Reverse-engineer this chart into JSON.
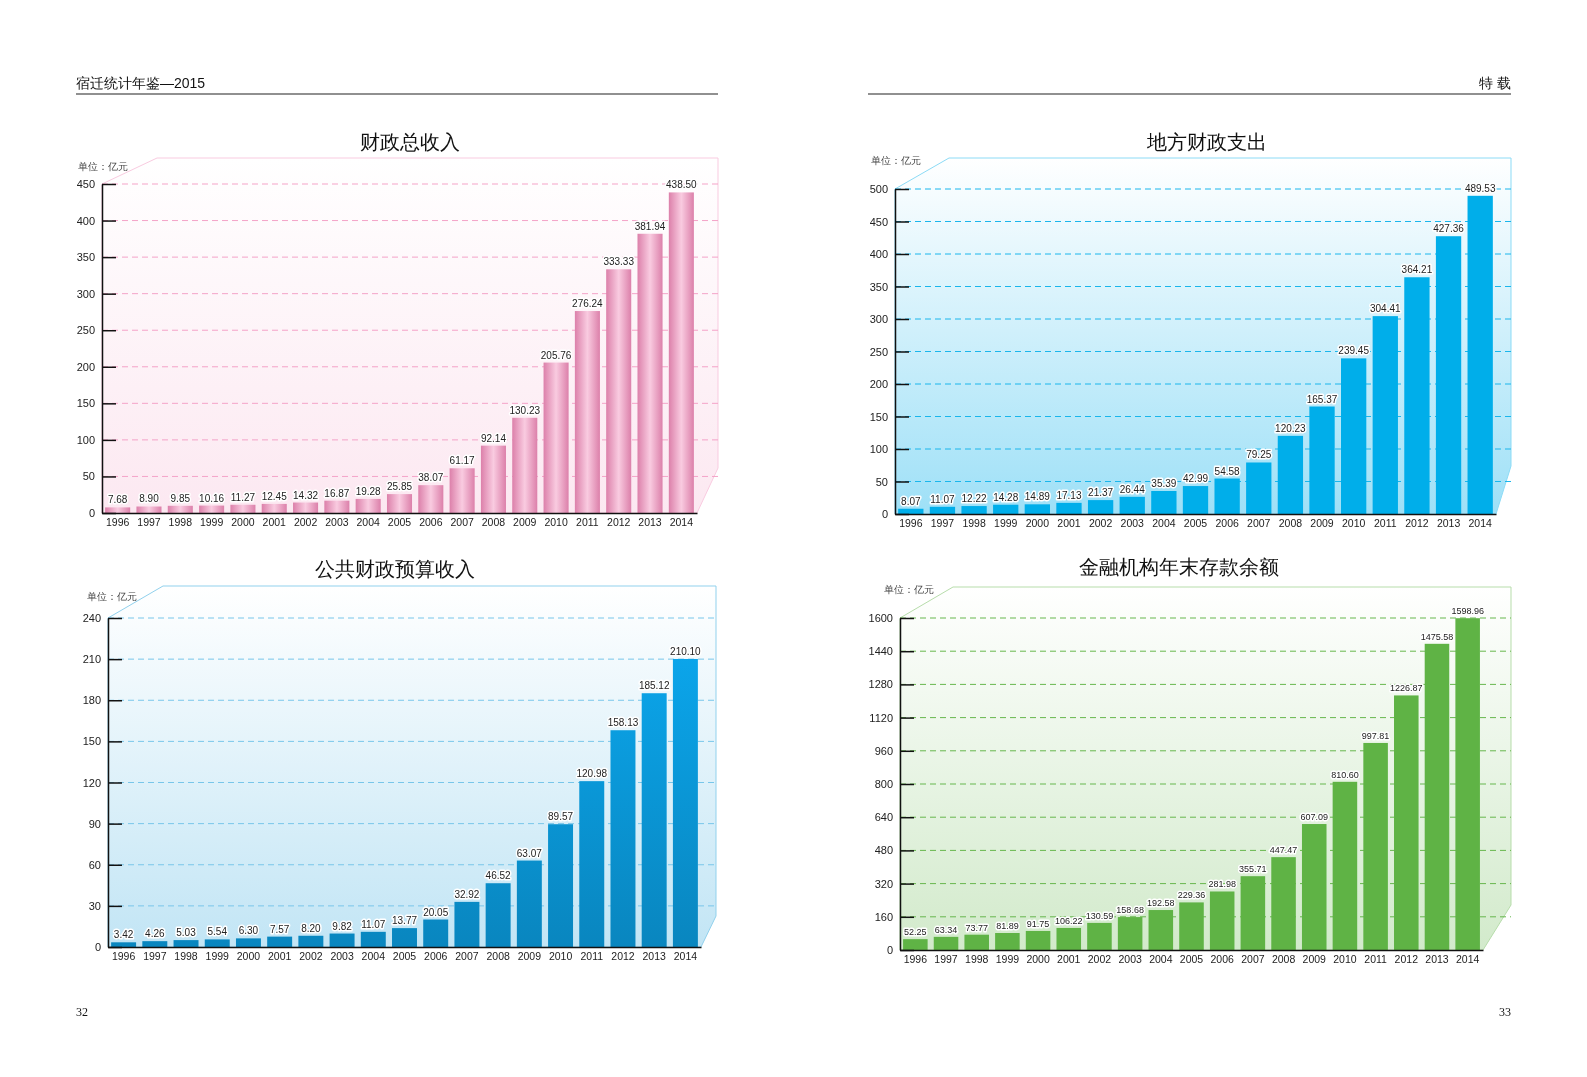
{
  "chart_data": [
    {
      "type": "bar",
      "title": "财政总收入",
      "ylabel": "单位：亿元",
      "categories": [
        "1996",
        "1997",
        "1998",
        "1999",
        "2000",
        "2001",
        "2002",
        "2003",
        "2004",
        "2005",
        "2006",
        "2007",
        "2008",
        "2009",
        "2010",
        "2011",
        "2012",
        "2013",
        "2014"
      ],
      "values": [
        7.68,
        8.9,
        9.85,
        10.16,
        11.27,
        12.45,
        14.32,
        16.87,
        19.28,
        25.85,
        38.07,
        61.17,
        92.14,
        130.23,
        205.76,
        276.24,
        333.33,
        381.94,
        438.5
      ],
      "value_labels": [
        "7.68",
        "8.90",
        "9.85",
        "10.16",
        "11.27",
        "12.45",
        "14.32",
        "16.87",
        "19.28",
        "25.85",
        "38.07",
        "61.17",
        "92.14",
        "130.23",
        "205.76",
        "276.24",
        "333.33",
        "381.94",
        "438.50"
      ],
      "color": "#f18cba",
      "ylim": [
        0,
        450
      ],
      "yticks": [
        0,
        50,
        100,
        150,
        200,
        250,
        300,
        350,
        400,
        450
      ],
      "grid": "y",
      "annotations": [
        "宿迁统计年鉴—2015"
      ]
    },
    {
      "type": "bar",
      "title": "地方财政支出",
      "ylabel": "单位：亿元",
      "categories": [
        "1996",
        "1997",
        "1998",
        "1999",
        "2000",
        "2001",
        "2002",
        "2003",
        "2004",
        "2005",
        "2006",
        "2007",
        "2008",
        "2009",
        "2010",
        "2011",
        "2012",
        "2013",
        "2014"
      ],
      "values": [
        8.07,
        11.07,
        12.22,
        14.28,
        14.89,
        17.13,
        21.37,
        26.44,
        35.39,
        42.99,
        54.58,
        79.25,
        120.23,
        165.37,
        239.45,
        304.41,
        364.21,
        427.36,
        489.53
      ],
      "value_labels": [
        "8.07",
        "11.07",
        "12.22",
        "14.28",
        "14.89",
        "17.13",
        "21.37",
        "26.44",
        "35.39",
        "42.99",
        "54.58",
        "79.25",
        "120.23",
        "165.37",
        "239.45",
        "304.41",
        "364.21",
        "427.36",
        "489.53"
      ],
      "color": "#00aeea",
      "ylim": [
        0,
        500
      ],
      "yticks": [
        0,
        50,
        100,
        150,
        200,
        250,
        300,
        350,
        400,
        450,
        500
      ],
      "grid": "y",
      "annotations": [
        "特 载"
      ]
    },
    {
      "type": "bar",
      "title": "公共财政预算收入",
      "ylabel": "单位：亿元",
      "categories": [
        "1996",
        "1997",
        "1998",
        "1999",
        "2000",
        "2001",
        "2002",
        "2003",
        "2004",
        "2005",
        "2006",
        "2007",
        "2008",
        "2009",
        "2010",
        "2011",
        "2012",
        "2013",
        "2014"
      ],
      "values": [
        3.42,
        4.26,
        5.03,
        5.54,
        6.3,
        7.57,
        8.2,
        9.82,
        11.07,
        13.77,
        20.05,
        32.92,
        46.52,
        63.07,
        89.57,
        120.98,
        158.13,
        185.12,
        210.1
      ],
      "value_labels": [
        "3.42",
        "4.26",
        "5.03",
        "5.54",
        "6.30",
        "7.57",
        "8.20",
        "9.82",
        "11.07",
        "13.77",
        "20.05",
        "32.92",
        "46.52",
        "63.07",
        "89.57",
        "120.98",
        "158.13",
        "185.12",
        "210.10"
      ],
      "color": "#0a98d8",
      "ylim": [
        0,
        240
      ],
      "yticks": [
        0,
        30,
        60,
        90,
        120,
        150,
        180,
        210,
        240
      ],
      "grid": "y",
      "annotations": [
        "32"
      ]
    },
    {
      "type": "bar",
      "title": "金融机构年末存款余额",
      "ylabel": "单位：亿元",
      "categories": [
        "1996",
        "1997",
        "1998",
        "1999",
        "2000",
        "2001",
        "2002",
        "2003",
        "2004",
        "2005",
        "2006",
        "2007",
        "2008",
        "2009",
        "2010",
        "2011",
        "2012",
        "2013",
        "2014"
      ],
      "values": [
        52.25,
        63.34,
        73.77,
        81.89,
        91.75,
        106.22,
        130.59,
        158.68,
        192.58,
        229.36,
        281.98,
        355.71,
        447.47,
        607.09,
        810.6,
        997.81,
        1226.87,
        1475.58,
        1598.96
      ],
      "value_labels": [
        "52.25",
        "63.34",
        "73.77",
        "81.89",
        "91.75",
        "106.22",
        "130.59",
        "158.68",
        "192.58",
        "229.36",
        "281.98",
        "355.71",
        "447.47",
        "607.09",
        "810.60",
        "997.81",
        "1226.87",
        "1475.58",
        "1598.96"
      ],
      "color": "#5fb345",
      "ylim": [
        0,
        1600
      ],
      "yticks": [
        0,
        160,
        320,
        480,
        640,
        800,
        960,
        1120,
        1280,
        1440,
        1600
      ],
      "grid": "y",
      "annotations": [
        "33"
      ]
    }
  ]
}
